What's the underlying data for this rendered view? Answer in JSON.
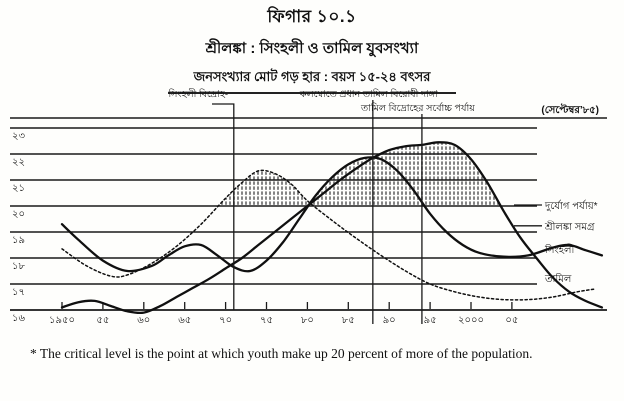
{
  "figure": {
    "number": "ফিগার ১০.১",
    "title": "শ্রীলঙ্কা : সিংহলী ও তামিল যুবসংখ্যা",
    "subtitle": "জনসংখ্যার মোট গড় হার : বয়স ১৫-২৪ বৎসর"
  },
  "footnote": "* The critical level is the point at which youth make up 20 percent of more of the population.",
  "chart_data": {
    "type": "line",
    "title": "শ্রীলঙ্কা : সিংহলী ও তামিল যুবসংখ্যা",
    "ylabel": "জনসংখ্যার মোট গড় হার : বয়স ১৫-২৪ বৎসর",
    "ylim": [
      16,
      23
    ],
    "y_axis": {
      "tick_values": [
        16,
        17,
        18,
        19,
        20,
        21,
        22,
        23
      ],
      "tick_labels": [
        "১৬",
        "১৭",
        "১৮",
        "১৯",
        "২০",
        "২১",
        "২২",
        "২৩"
      ]
    },
    "x_axis": {
      "tick_years": [
        1950,
        1955,
        1960,
        1965,
        1970,
        1975,
        1980,
        1985,
        1990,
        1995,
        2000,
        2005
      ],
      "tick_labels": [
        "১৯৫০",
        "৫৫",
        "৬০",
        "৬৫",
        "৭০",
        "৭৫",
        "৮০",
        "৮৫",
        "৯০",
        "৯৫",
        "২০০০",
        "০৫"
      ],
      "range_years": [
        1950,
        2016
      ]
    },
    "critical_level": 20,
    "critical_level_label": "দুর্যোগ পর্যায়*",
    "grid": true,
    "series": [
      {
        "key": "total",
        "name": "শ্রীলঙ্কা সমগ্র",
        "style": "dotted",
        "points": [
          [
            1950,
            18.35
          ],
          [
            1953,
            17.7
          ],
          [
            1956,
            17.3
          ],
          [
            1958,
            17.35
          ],
          [
            1961,
            17.8
          ],
          [
            1964,
            18.45
          ],
          [
            1967,
            19.3
          ],
          [
            1970,
            20.3
          ],
          [
            1972,
            20.9
          ],
          [
            1974,
            21.35
          ],
          [
            1976,
            21.25
          ],
          [
            1978,
            20.85
          ],
          [
            1980,
            20.2
          ],
          [
            1983,
            19.45
          ],
          [
            1986,
            18.75
          ],
          [
            1989,
            18.1
          ],
          [
            1992,
            17.5
          ],
          [
            1995,
            17.0
          ],
          [
            1998,
            16.7
          ],
          [
            2001,
            16.5
          ],
          [
            2004,
            16.4
          ],
          [
            2007,
            16.4
          ],
          [
            2010,
            16.5
          ],
          [
            2013,
            16.7
          ],
          [
            2015,
            16.8
          ]
        ]
      },
      {
        "key": "sinhalese",
        "name": "সিংহলী",
        "style": "solid",
        "points": [
          [
            1950,
            19.3
          ],
          [
            1952,
            18.7
          ],
          [
            1955,
            17.9
          ],
          [
            1958,
            17.5
          ],
          [
            1961,
            17.7
          ],
          [
            1963,
            18.1
          ],
          [
            1965,
            18.45
          ],
          [
            1967,
            18.5
          ],
          [
            1969,
            18.1
          ],
          [
            1971,
            17.65
          ],
          [
            1973,
            17.5
          ],
          [
            1975,
            17.9
          ],
          [
            1977,
            18.6
          ],
          [
            1979,
            19.5
          ],
          [
            1981,
            20.4
          ],
          [
            1983,
            21.1
          ],
          [
            1985,
            21.6
          ],
          [
            1987,
            21.85
          ],
          [
            1989,
            21.8
          ],
          [
            1991,
            21.35
          ],
          [
            1993,
            20.6
          ],
          [
            1995,
            19.7
          ],
          [
            1997,
            19.0
          ],
          [
            1999,
            18.5
          ],
          [
            2001,
            18.2
          ],
          [
            2004,
            18.05
          ],
          [
            2007,
            18.1
          ],
          [
            2010,
            18.4
          ],
          [
            2012,
            18.5
          ],
          [
            2014,
            18.3
          ],
          [
            2016,
            18.1
          ]
        ]
      },
      {
        "key": "tamil",
        "name": "তামিল",
        "style": "solid",
        "points": [
          [
            1950,
            16.1
          ],
          [
            1952,
            16.3
          ],
          [
            1954,
            16.35
          ],
          [
            1956,
            16.15
          ],
          [
            1958,
            15.95
          ],
          [
            1960,
            15.9
          ],
          [
            1962,
            16.15
          ],
          [
            1964,
            16.5
          ],
          [
            1966,
            16.85
          ],
          [
            1968,
            17.2
          ],
          [
            1970,
            17.6
          ],
          [
            1972,
            18.0
          ],
          [
            1974,
            18.5
          ],
          [
            1976,
            19.0
          ],
          [
            1978,
            19.5
          ],
          [
            1980,
            20.0
          ],
          [
            1982,
            20.5
          ],
          [
            1984,
            21.0
          ],
          [
            1986,
            21.45
          ],
          [
            1988,
            21.85
          ],
          [
            1990,
            22.15
          ],
          [
            1992,
            22.3
          ],
          [
            1994,
            22.35
          ],
          [
            1996,
            22.45
          ],
          [
            1998,
            22.35
          ],
          [
            2000,
            21.8
          ],
          [
            2002,
            20.9
          ],
          [
            2004,
            19.8
          ],
          [
            2006,
            18.8
          ],
          [
            2008,
            18.0
          ],
          [
            2010,
            17.25
          ],
          [
            2012,
            16.7
          ],
          [
            2014,
            16.35
          ],
          [
            2016,
            16.1
          ]
        ]
      }
    ],
    "right_labels": [
      {
        "text": "দুর্যোগ পর্যায়*",
        "at_value": 20,
        "leader_dash": true
      },
      {
        "text": "শ্রীলঙ্কা সমগ্র",
        "at_value": 19.2,
        "leader_dash": true
      },
      {
        "text": "সিংহলী",
        "at_value": 18.3,
        "leader_dash": false
      },
      {
        "text": "তামিল",
        "at_value": 17.2,
        "leader_dash": false
      }
    ],
    "annotations": [
      {
        "text": "সিংহলী বিদ্রোহ-",
        "year": 1971,
        "row": 1,
        "bracket": true,
        "below_axis": false
      },
      {
        "text": "কলম্বোতে প্রধান তামিল বিরোধী দাঙ্গা",
        "year": 1988,
        "row": 1,
        "bracket": false,
        "below_axis": true
      },
      {
        "text": "তামিল বিদ্রোহের সর্বোচ্চ পর্যায়",
        "year": 1994,
        "row": 2,
        "bracket": false,
        "below_axis": true
      },
      {
        "text": "(সেপ্টেম্বর’৮৫)",
        "corner": "top-right"
      }
    ],
    "shaded_region": {
      "description": "hatched area where youth share exceeds critical level 20",
      "above_value": 20,
      "from_year": 1969,
      "to_year": 2004
    }
  }
}
